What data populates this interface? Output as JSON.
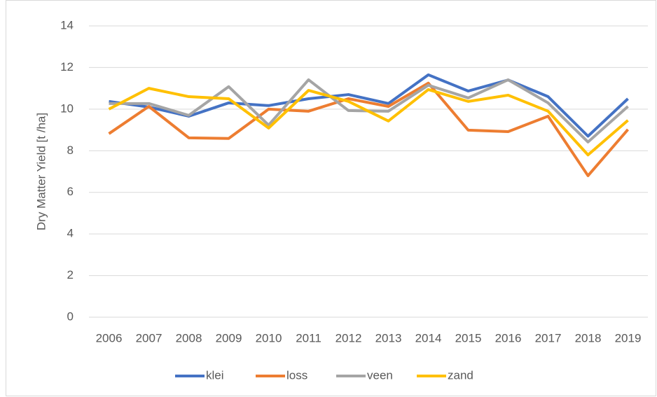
{
  "chart_data": {
    "type": "line",
    "y_label": "Dry Matter Yield [t /ha]",
    "categories": [
      "2006",
      "2007",
      "2008",
      "2009",
      "2010",
      "2011",
      "2012",
      "2013",
      "2014",
      "2015",
      "2016",
      "2017",
      "2018",
      "2019"
    ],
    "series": [
      {
        "name": "klei",
        "color": "#4472c4",
        "values": [
          10.37,
          10.1,
          9.66,
          10.3,
          10.17,
          10.5,
          10.7,
          10.27,
          11.65,
          10.87,
          11.4,
          10.6,
          8.7,
          10.5
        ]
      },
      {
        "name": "loss",
        "color": "#ed7d31",
        "values": [
          8.82,
          10.13,
          8.62,
          8.59,
          10.0,
          9.9,
          10.5,
          10.13,
          11.25,
          8.99,
          8.92,
          9.66,
          6.8,
          9.02
        ]
      },
      {
        "name": "veen",
        "color": "#a5a5a5",
        "values": [
          10.27,
          10.27,
          9.7,
          11.08,
          9.23,
          11.41,
          9.93,
          9.9,
          11.15,
          10.54,
          11.41,
          10.3,
          8.42,
          10.13
        ]
      },
      {
        "name": "zand",
        "color": "#ffc000",
        "values": [
          10.0,
          11.0,
          10.6,
          10.5,
          9.09,
          10.9,
          10.37,
          9.43,
          10.94,
          10.37,
          10.67,
          9.9,
          7.8,
          9.46
        ]
      }
    ],
    "ylim": [
      0,
      14
    ],
    "yticks": [
      0,
      2,
      4,
      6,
      8,
      10,
      12,
      14
    ],
    "grid": true,
    "legend": "bottom"
  }
}
